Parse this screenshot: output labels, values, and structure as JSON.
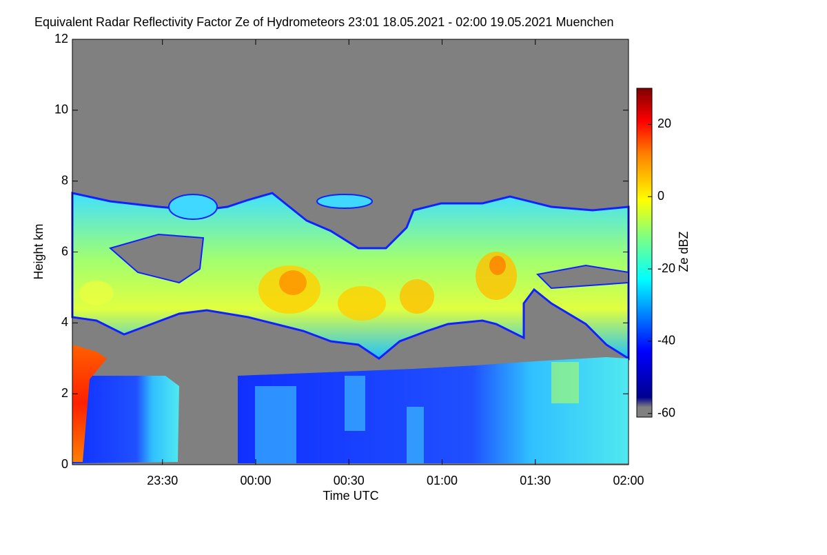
{
  "chart_data": {
    "type": "time-height",
    "title": "Equivalent Radar Reflectivity Factor Ze of Hydrometeors   23:01 18.05.2021 - 02:00 19.05.2021 Muenchen",
    "xlabel": "Time UTC",
    "ylabel": "Height km",
    "xlim": [
      "23:01",
      "02:00"
    ],
    "xticks": [
      "23:30",
      "00:00",
      "00:30",
      "01:00",
      "01:30",
      "02:00"
    ],
    "ylim": [
      0,
      12
    ],
    "yticks": [
      0,
      2,
      4,
      6,
      8,
      10,
      12
    ],
    "colorbar": {
      "label": "Ze dBZ",
      "lim": [
        -61,
        30
      ],
      "ticks": [
        20,
        0,
        -20,
        -40,
        -60
      ]
    }
  }
}
